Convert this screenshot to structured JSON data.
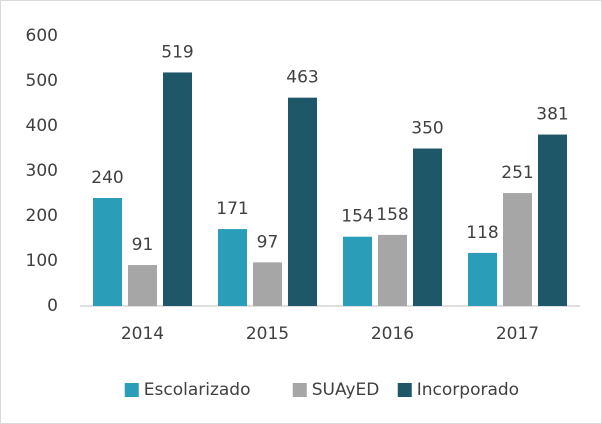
{
  "chart_data": {
    "type": "bar",
    "categories": [
      "2014",
      "2015",
      "2016",
      "2017"
    ],
    "series": [
      {
        "name": "Escolarizado",
        "color": "#2a9db8",
        "values": [
          240,
          171,
          154,
          118
        ]
      },
      {
        "name": "SUAyED",
        "color": "#a6a6a6",
        "values": [
          91,
          97,
          158,
          251
        ]
      },
      {
        "name": "Incorporado",
        "color": "#1e5868",
        "values": [
          519,
          463,
          350,
          381
        ]
      }
    ],
    "ylim": [
      0,
      600
    ],
    "yticks": [
      0,
      100,
      200,
      300,
      400,
      500,
      600
    ],
    "grid": false,
    "legend": "bottom"
  }
}
